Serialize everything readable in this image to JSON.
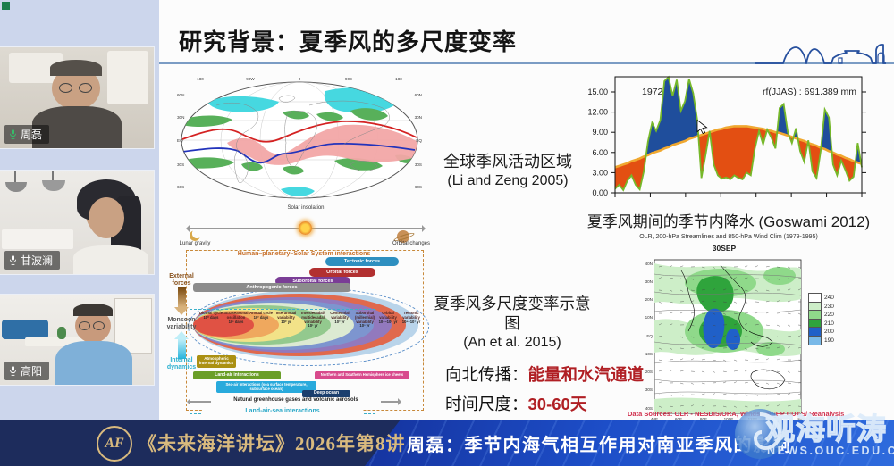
{
  "app": {
    "status_square_color": "#1b7d4d"
  },
  "sidebar": {
    "participants": [
      {
        "name": "周磊",
        "mic_color": "#35c06a"
      },
      {
        "name": "甘波澜",
        "mic_color": "#ffffff"
      },
      {
        "name": "高阳",
        "mic_color": "#ffffff"
      }
    ]
  },
  "slide": {
    "title": "研究背景：夏季风的多尺度变率",
    "world_map": {
      "caption_line1": "全球季风活动区域",
      "caption_line2": "(Li and Zeng 2005)",
      "top_labels": [
        "180",
        "90W",
        "0",
        "90E",
        "180"
      ],
      "side_labels": [
        "60N",
        "30N",
        "EQ",
        "30S",
        "60S"
      ]
    },
    "rain_chart": {
      "year": "1972",
      "annotation": "rf(JJAS) : 691.389 mm",
      "ytick_labels": [
        "0.00",
        "3.00",
        "6.00",
        "9.00",
        "12.00",
        "15.00"
      ]
    },
    "rain_caption": "夏季风期间的季节内降水 (Goswami 2012)",
    "olr": {
      "subtitle": "OLR, 200-hPa Streamlines and 850-hPa Wind Clim (1979-1995)",
      "date_label": "30SEP",
      "lat_labels": [
        "40N",
        "30N",
        "20N",
        "10N",
        "EQ",
        "10S",
        "20S",
        "30S",
        "40S"
      ],
      "lon_labels": [
        "40E",
        "60E",
        "80E",
        "100E",
        "120E",
        "140E",
        "160E"
      ],
      "colorbar": [
        {
          "value": "240",
          "color": "#ffffff"
        },
        {
          "value": "230",
          "color": "#cdeec8"
        },
        {
          "value": "220",
          "color": "#8fd98a"
        },
        {
          "value": "210",
          "color": "#2fa43c"
        },
        {
          "value": "200",
          "color": "#2060c8"
        },
        {
          "value": "190",
          "color": "#79b9e8"
        }
      ],
      "source": "Data Sources: OLR - NESDIS/ORA, Winds - NCEP CDAS/ Reanalysis"
    },
    "schematic": {
      "caption_line1": "夏季风多尺度变率示意图",
      "caption_line2": "(An et al. 2015)",
      "solar_label": "Solar insolation",
      "lunar_label": "Lunar gravity",
      "orbital_label": "Orbital changes",
      "box_title": "Human–planetary–Solar System interactions",
      "forces": [
        {
          "label": "Tectonic forces",
          "color": "#2e8fc0"
        },
        {
          "label": "Orbital forces",
          "color": "#b23030"
        },
        {
          "label": "Suborbital forces",
          "color": "#7a3d96"
        },
        {
          "label": "Anthropogenic forces",
          "color": "#8c8c8c"
        }
      ],
      "external_label": "External forces",
      "monsoon_label": "Monsoon variability",
      "internal_label": "Internal dynamics",
      "ring_colors": [
        "#b9d4ea",
        "#e0694d",
        "#9279bd",
        "#7d95cf",
        "#dcead2",
        "#93c98e",
        "#f2e288",
        "#efa85e",
        "#e05244"
      ],
      "scales": [
        {
          "label": "Diurnal cycle",
          "time": "10⁰ days"
        },
        {
          "label": "Intraseasonal oscillation",
          "time": "10¹ days"
        },
        {
          "label": "Annual cycle",
          "time": "10² days"
        },
        {
          "label": "Interannual variability",
          "time": "10⁰ yr"
        },
        {
          "label": "Interdecadal/ multidecadal variability",
          "time": "10¹ yr"
        },
        {
          "label": "Centennial variability",
          "time": "10² yr"
        },
        {
          "label": "Suborbital (millennial) variability",
          "time": "10³ yr"
        },
        {
          "label": "Orbital variability",
          "time": "10⁴–10⁵ yr"
        },
        {
          "label": "Tectonic variability",
          "time": "10⁶–10⁷ yr"
        }
      ],
      "layers": [
        {
          "label": "Atmospheric internal dynamics",
          "color": "#ab9012"
        },
        {
          "label": "Land-air interactions",
          "color": "#6a9e28"
        },
        {
          "label": "Northern and Southern Hemisphere ice sheets",
          "color": "#d84a8c"
        },
        {
          "label": "Sea-air interactions (sea surface temperature, subsurface ocean)",
          "color": "#29aadc"
        },
        {
          "label": "Deep ocean",
          "color": "#1c3f6e"
        }
      ],
      "ghg_label": "Natural greenhouse gases and volcanic aerosols",
      "bottom_label": "Land-air-sea interactions"
    },
    "northward": {
      "label": "向北传播：",
      "value": "能量和水汽通道"
    },
    "timescale": {
      "label": "时间尺度：",
      "value": "30-60天"
    }
  },
  "footer": {
    "logo_text": "AF",
    "series_title": "《未来海洋讲坛》2026年第8讲",
    "talk_title": "周磊：季节内海气相互作用对南亚季风的影响"
  },
  "watermark": {
    "text": "观海听涛",
    "subtext": "NEWS.OUC.EDU.CN"
  },
  "colors": {
    "accent_red": "#b01f24",
    "footer_gold": "#d9ba7e",
    "footer_navy": "#1d2c5c",
    "footer_blue": "#1e4fc8",
    "underline_blue": "#7b9cc4"
  },
  "chart_data": [
    {
      "type": "area",
      "title": "rf(JJAS) : 691.389 mm",
      "year_annotation": "1972",
      "x_description": "days through the 1972 summer monsoon season (JJAS)",
      "ylim": [
        0,
        17.25
      ],
      "yticks": [
        0,
        3,
        6,
        9,
        12,
        15
      ],
      "series": [
        {
          "name": "daily rainfall",
          "values": [
            0.6,
            1.2,
            0.4,
            1.8,
            2.6,
            1.2,
            0.5,
            3.2,
            7.6,
            10.4,
            9.2,
            10.8,
            16.6,
            17.2,
            14.4,
            16.8,
            12.2,
            13.6,
            16.9,
            14.8,
            10.8,
            2.2,
            5.6,
            9.2,
            4.2,
            2.6,
            2.1,
            2.3,
            2.0,
            2.6,
            2.2,
            2.0,
            3.0,
            2.6,
            6.6,
            9.2,
            7.2,
            9.4,
            8.2,
            6.6,
            12.6,
            13.2,
            9.0,
            7.4,
            9.6,
            6.2,
            4.6,
            7.8,
            3.2,
            2.2,
            6.2,
            12.4,
            11.2,
            4.2,
            2.6,
            4.8,
            3.4,
            1.8,
            2.4,
            7.4,
            3.8
          ]
        },
        {
          "name": "climatological seasonal cycle",
          "values": [
            3.8,
            4.0,
            4.2,
            4.4,
            4.7,
            4.9,
            5.1,
            5.4,
            5.6,
            5.9,
            6.1,
            6.3,
            6.6,
            6.8,
            7.1,
            7.3,
            7.5,
            7.7,
            8.0,
            8.2,
            8.4,
            8.6,
            8.8,
            9.0,
            9.2,
            9.4,
            9.5,
            9.7,
            9.8,
            9.9,
            9.9,
            9.9,
            9.9,
            9.8,
            9.7,
            9.6,
            9.5,
            9.3,
            9.2,
            9.0,
            8.9,
            8.7,
            8.5,
            8.3,
            8.1,
            7.9,
            7.7,
            7.4,
            7.2,
            7.0,
            6.7,
            6.5,
            6.2,
            6.0,
            5.7,
            5.5,
            5.2,
            5.0,
            4.7,
            4.5,
            4.3
          ]
        }
      ],
      "fill_rules": "blue fill where rainfall exceeds climatology (active spells); orange-red fill where rainfall is below climatology (break spells)",
      "colors": {
        "rain_line": "#76b82a",
        "climatology_line": "#f0a830",
        "surplus_fill": "#1f4e9c",
        "deficit_fill": "#e34f12"
      }
    },
    {
      "type": "heatmap",
      "title": "30SEP",
      "subtitle": "OLR, 200-hPa Streamlines and 850-hPa Wind Clim (1979-1995)",
      "colorbar_levels": [
        240,
        230,
        220,
        210,
        200,
        190
      ],
      "x_ticklabels": [
        "40E",
        "60E",
        "80E",
        "100E",
        "120E",
        "140E",
        "160E"
      ],
      "y_ticklabels": [
        "40N",
        "30N",
        "20N",
        "10N",
        "EQ",
        "10S",
        "20S",
        "30S",
        "40S"
      ],
      "source": "Data Sources: OLR - NESDIS/ORA, Winds - NCEP CDAS/ Reanalysis",
      "description": "Shaded OLR minima (deep convection, blue/dark green) over the Bay of Bengal and South China Sea with streamlines and wind vectors over the Indian Ocean / western Pacific"
    },
    {
      "type": "map",
      "title": "Global monsoon domains (Li and Zeng 2005)",
      "x_ticklabels": [
        "180",
        "90W",
        "0",
        "90E",
        "180"
      ],
      "y_ticklabels": [
        "60N",
        "30N",
        "EQ",
        "30S",
        "60S"
      ],
      "description": "Robinson-projection world map: pink tropical monsoon band along the equator/tropics, green subtropical domains near 30N/30S, cyan high-latitude domains, red and blue curves marking summer and winter monsoon rain belt boundaries"
    }
  ]
}
